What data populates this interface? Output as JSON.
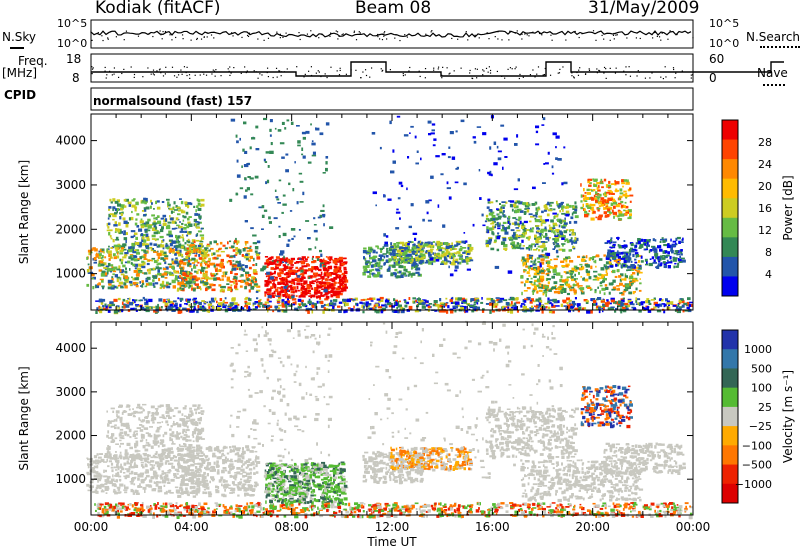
{
  "header": {
    "station": "Kodiak (fitACF)",
    "beam": "Beam 08",
    "date": "31/May/2009"
  },
  "top_panels": {
    "nsky_label": "N.Sky",
    "nsky_ticks": [
      "10^5",
      "10^0"
    ],
    "nsearch_label": "N.Search",
    "nsearch_ticks": [
      "10^5",
      "10^0"
    ],
    "freq_label": "Freq.",
    "freq_unit": "[MHz]",
    "freq_ticks": [
      "18",
      "8"
    ],
    "nave_label": "Nave",
    "nave_ticks": [
      "60",
      "0"
    ],
    "cpid_label": "CPID",
    "cpid_value": "normalsound (fast) 157"
  },
  "chart_data": [
    {
      "type": "heatmap",
      "name": "power-panel",
      "ylabel": "Slant Range [km]",
      "ylim": [
        180,
        4600
      ],
      "yticks": [
        "1000",
        "2000",
        "3000",
        "4000"
      ],
      "xlim": [
        0,
        24
      ],
      "colorbar": {
        "label": "Power [dB]",
        "ticks": [
          "28",
          "24",
          "20",
          "16",
          "12",
          "8",
          "4"
        ],
        "colors": [
          "#ee0000",
          "#ff4400",
          "#ff8800",
          "#ffbb00",
          "#cccc22",
          "#66bb44",
          "#338855",
          "#2255aa",
          "#0000ee"
        ]
      }
    },
    {
      "type": "heatmap",
      "name": "velocity-panel",
      "ylabel": "Slant Range [km]",
      "ylim": [
        180,
        4600
      ],
      "yticks": [
        "1000",
        "2000",
        "3000",
        "4000"
      ],
      "xlim": [
        0,
        24
      ],
      "xlabel": "Time UT",
      "xticks": [
        "00:00",
        "04:00",
        "08:00",
        "12:00",
        "16:00",
        "20:00",
        "00:00"
      ],
      "colorbar": {
        "label": "Velocity [m s⁻¹]",
        "ticks": [
          "1000",
          "500",
          "100",
          "25",
          "−25",
          "−100",
          "−500",
          "−1000"
        ],
        "colors": [
          "#2233aa",
          "#3377aa",
          "#336655",
          "#55bb33",
          "#c8c8c0",
          "#ffaa00",
          "#ff7700",
          "#ee2200",
          "#dd0000"
        ]
      }
    }
  ]
}
